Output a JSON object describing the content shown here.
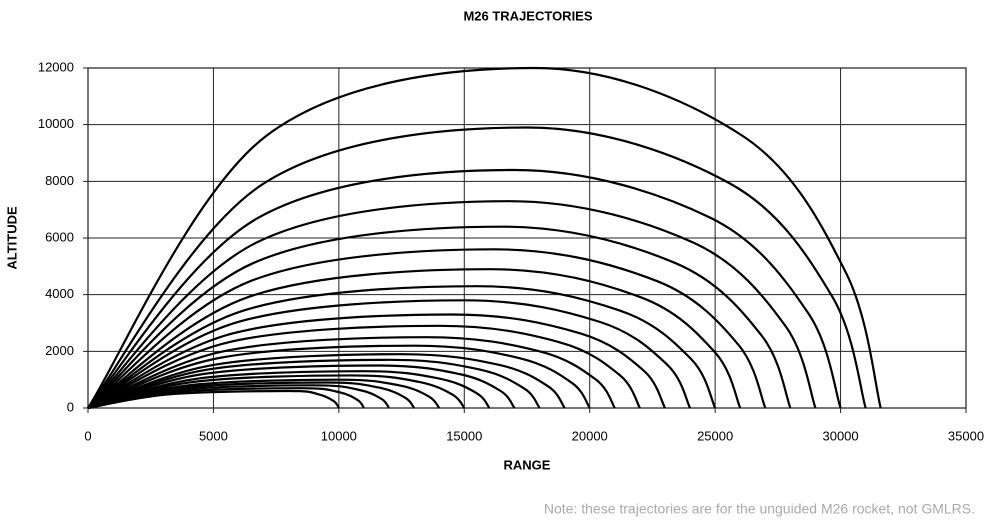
{
  "chart_data": {
    "type": "line",
    "title": "M26 TRAJECTORIES",
    "xlabel": "RANGE",
    "ylabel": "ALTITUDE",
    "note": "Note: these trajectories are for the unguided M26 rocket, not GMLRS.",
    "xlim": [
      0,
      35000
    ],
    "xticks": [
      0,
      5000,
      10000,
      15000,
      20000,
      25000,
      30000,
      35000
    ],
    "ylim": [
      0,
      12000
    ],
    "yticks": [
      0,
      2000,
      4000,
      6000,
      8000,
      10000,
      12000
    ],
    "grid": true,
    "color": "#000000",
    "series": [
      {
        "x": [
          0,
          7100,
          17800,
          26100,
          30200,
          31600
        ],
        "values": [
          0,
          9600,
          12000,
          9600,
          4800,
          0
        ]
      },
      {
        "x": [
          0,
          7000,
          17500,
          25600,
          29650,
          31000
        ],
        "values": [
          0,
          7920,
          9900,
          7920,
          3960,
          0
        ]
      },
      {
        "x": [
          0,
          6800,
          17000,
          24800,
          28700,
          30000
        ],
        "values": [
          0,
          6720,
          8400,
          6720,
          3360,
          0
        ]
      },
      {
        "x": [
          0,
          6720,
          16800,
          24120,
          27780,
          29000
        ],
        "values": [
          0,
          5840,
          7300,
          5840,
          2920,
          0
        ]
      },
      {
        "x": [
          0,
          6600,
          16500,
          23400,
          26850,
          28000
        ],
        "values": [
          0,
          5120,
          6400,
          5120,
          2560,
          0
        ]
      },
      {
        "x": [
          0,
          6480,
          16200,
          22680,
          25920,
          27000
        ],
        "values": [
          0,
          4480,
          5600,
          4480,
          2240,
          0
        ]
      },
      {
        "x": [
          0,
          6400,
          16000,
          22000,
          25000,
          26000
        ],
        "values": [
          0,
          3920,
          4900,
          3920,
          1960,
          0
        ]
      },
      {
        "x": [
          0,
          6200,
          15500,
          21200,
          24050,
          25000
        ],
        "values": [
          0,
          3440,
          4300,
          3440,
          1720,
          0
        ]
      },
      {
        "x": [
          0,
          6000,
          15000,
          20400,
          23100,
          24000
        ],
        "values": [
          0,
          3040,
          3800,
          3040,
          1520,
          0
        ]
      },
      {
        "x": [
          0,
          5800,
          14500,
          19600,
          22150,
          23000
        ],
        "values": [
          0,
          2640,
          3300,
          2640,
          1320,
          0
        ]
      },
      {
        "x": [
          0,
          5600,
          14000,
          18800,
          21200,
          22000
        ],
        "values": [
          0,
          2320,
          2900,
          2320,
          1160,
          0
        ]
      },
      {
        "x": [
          0,
          5400,
          13500,
          18000,
          20250,
          21000
        ],
        "values": [
          0,
          2000,
          2500,
          2000,
          1000,
          0
        ]
      },
      {
        "x": [
          0,
          5200,
          13000,
          17200,
          19300,
          20000
        ],
        "values": [
          0,
          1760,
          2200,
          1760,
          880,
          0
        ]
      },
      {
        "x": [
          0,
          5000,
          12500,
          16400,
          18350,
          19000
        ],
        "values": [
          0,
          1520,
          1900,
          1520,
          760,
          0
        ]
      },
      {
        "x": [
          0,
          4800,
          12000,
          15600,
          17400,
          18000
        ],
        "values": [
          0,
          1360,
          1700,
          1360,
          680,
          0
        ]
      },
      {
        "x": [
          0,
          4600,
          11500,
          14800,
          16450,
          17000
        ],
        "values": [
          0,
          1200,
          1500,
          1200,
          600,
          0
        ]
      },
      {
        "x": [
          0,
          4400,
          11000,
          14000,
          15500,
          16000
        ],
        "values": [
          0,
          1040,
          1300,
          1040,
          520,
          0
        ]
      },
      {
        "x": [
          0,
          4200,
          10500,
          13200,
          14550,
          15000
        ],
        "values": [
          0,
          920,
          1150,
          920,
          460,
          0
        ]
      },
      {
        "x": [
          0,
          4000,
          10000,
          12400,
          13600,
          14000
        ],
        "values": [
          0,
          800,
          1000,
          800,
          400,
          0
        ]
      },
      {
        "x": [
          0,
          3800,
          9500,
          11600,
          12650,
          13000
        ],
        "values": [
          0,
          720,
          900,
          720,
          360,
          0
        ]
      },
      {
        "x": [
          0,
          3600,
          9000,
          10800,
          11700,
          12000
        ],
        "values": [
          0,
          640,
          800,
          640,
          320,
          0
        ]
      },
      {
        "x": [
          0,
          3400,
          8500,
          10000,
          10750,
          11000
        ],
        "values": [
          0,
          560,
          700,
          560,
          280,
          0
        ]
      },
      {
        "x": [
          0,
          3200,
          8000,
          9200,
          9800,
          10000
        ],
        "values": [
          0,
          480,
          600,
          480,
          240,
          0
        ]
      }
    ]
  }
}
